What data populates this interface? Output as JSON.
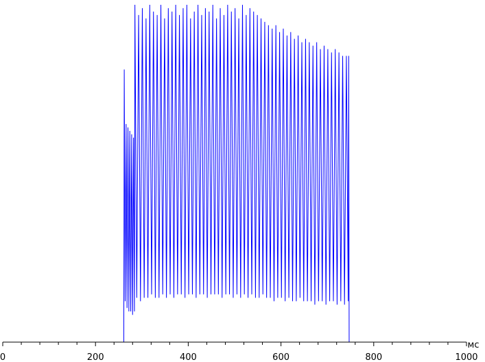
{
  "chart_data": {
    "type": "line",
    "x_unit": "мс",
    "x": [
      0,
      261,
      262,
      264,
      266,
      268,
      270,
      272,
      274,
      276,
      278,
      280,
      282,
      284,
      285,
      289,
      293,
      297,
      301,
      305,
      309,
      313,
      317,
      321,
      325,
      329,
      333,
      337,
      341,
      345,
      349,
      353,
      357,
      361,
      365,
      369,
      373,
      377,
      381,
      385,
      389,
      393,
      397,
      401,
      405,
      409,
      413,
      417,
      421,
      425,
      429,
      433,
      437,
      441,
      445,
      449,
      453,
      457,
      461,
      465,
      469,
      473,
      477,
      481,
      485,
      489,
      493,
      497,
      501,
      505,
      509,
      513,
      517,
      521,
      525,
      529,
      533,
      537,
      541,
      545,
      549,
      553,
      557,
      561,
      565,
      569,
      573,
      577,
      581,
      585,
      589,
      593,
      597,
      601,
      605,
      609,
      613,
      617,
      621,
      625,
      629,
      633,
      637,
      641,
      645,
      649,
      653,
      657,
      661,
      665,
      669,
      673,
      677,
      681,
      685,
      689,
      693,
      697,
      701,
      705,
      709,
      713,
      717,
      721,
      725,
      729,
      733,
      737,
      741,
      745,
      746,
      747,
      1000
    ],
    "values": [
      0,
      0,
      80,
      12,
      64,
      10,
      63,
      9,
      62,
      9,
      61,
      8,
      60,
      9,
      99,
      13,
      96,
      12,
      98,
      13,
      95,
      13,
      99,
      14,
      97,
      13,
      96,
      13,
      99,
      14,
      95,
      13,
      98,
      14,
      97,
      13,
      99,
      14,
      96,
      14,
      98,
      13,
      99,
      14,
      95,
      14,
      97,
      13,
      99,
      14,
      96,
      14,
      98,
      13,
      97,
      14,
      99,
      14,
      95,
      14,
      98,
      13,
      96,
      14,
      99,
      14,
      97,
      13,
      98,
      14,
      95,
      13,
      99,
      14,
      96,
      13,
      98,
      14,
      97,
      13,
      96,
      13,
      95,
      14,
      94,
      13,
      93,
      13,
      92,
      12,
      93,
      13,
      91,
      13,
      92,
      12,
      90,
      13,
      91,
      12,
      89,
      12,
      90,
      13,
      88,
      12,
      89,
      12,
      88,
      12,
      87,
      11,
      88,
      12,
      86,
      12,
      87,
      11,
      86,
      12,
      85,
      12,
      86,
      11,
      85,
      12,
      84,
      11,
      84,
      12,
      84,
      0,
      0
    ],
    "color": "#0000ff",
    "xlim": [
      0,
      1000
    ],
    "xticks": [
      0,
      200,
      400,
      600,
      800,
      1000
    ],
    "xminorticks": [
      40,
      80,
      120,
      160,
      240,
      280,
      320,
      360,
      440,
      480,
      520,
      560,
      640,
      680,
      720,
      760,
      840,
      880,
      920,
      960
    ],
    "ylim": [
      0,
      100
    ]
  }
}
